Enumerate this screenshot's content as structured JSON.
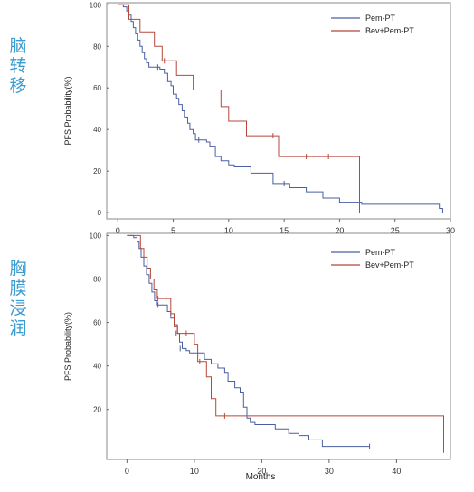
{
  "side_labels": {
    "top": [
      "脑",
      "转",
      "移"
    ],
    "bottom": [
      "胸",
      "膜",
      "浸",
      "润"
    ]
  },
  "colors": {
    "pem_pt": "#4a5fa0",
    "bev_pem_pt": "#b5483a",
    "side_label": "#3a9bd0"
  },
  "chart_data": [
    {
      "type": "line",
      "ylabel": "PFS Probability(%)",
      "xlabel": "",
      "xlim": [
        -1,
        30
      ],
      "ylim": [
        -3,
        101
      ],
      "xticks": [
        0,
        5,
        10,
        15,
        20,
        25,
        30
      ],
      "yticks": [
        0,
        20,
        40,
        60,
        80,
        100
      ],
      "legend": {
        "placement": "top-right"
      },
      "series": [
        {
          "name": "Pem-PT",
          "step": [
            [
              0,
              100
            ],
            [
              0.5,
              99
            ],
            [
              0.8,
              97
            ],
            [
              1.0,
              95
            ],
            [
              1.2,
              92
            ],
            [
              1.4,
              89
            ],
            [
              1.6,
              86
            ],
            [
              1.8,
              83
            ],
            [
              2.0,
              80
            ],
            [
              2.2,
              77
            ],
            [
              2.4,
              74
            ],
            [
              2.6,
              72
            ],
            [
              2.8,
              70
            ],
            [
              3.5,
              70
            ],
            [
              3.8,
              69
            ],
            [
              4.2,
              67
            ],
            [
              4.5,
              63
            ],
            [
              4.8,
              61
            ],
            [
              5.0,
              57
            ],
            [
              5.3,
              55
            ],
            [
              5.5,
              52
            ],
            [
              5.8,
              49
            ],
            [
              6.0,
              46
            ],
            [
              6.3,
              43
            ],
            [
              6.5,
              40
            ],
            [
              6.8,
              38
            ],
            [
              7.0,
              35
            ],
            [
              7.5,
              35
            ],
            [
              8.0,
              34
            ],
            [
              8.3,
              32
            ],
            [
              8.8,
              27
            ],
            [
              9.3,
              25
            ],
            [
              10.0,
              23
            ],
            [
              10.5,
              22
            ],
            [
              12.0,
              19
            ],
            [
              14.0,
              14
            ],
            [
              15.5,
              12
            ],
            [
              17.0,
              10
            ],
            [
              18.5,
              7
            ],
            [
              20.0,
              5
            ],
            [
              21.0,
              5
            ],
            [
              22.0,
              4
            ],
            [
              28.8,
              4
            ],
            [
              29.0,
              2
            ],
            [
              29.3,
              0
            ]
          ],
          "censored": [
            [
              3.6,
              70
            ],
            [
              7.3,
              35
            ],
            [
              15.0,
              14
            ]
          ]
        },
        {
          "name": "Bev+Pem-PT",
          "step": [
            [
              0,
              100
            ],
            [
              0.8,
              100
            ],
            [
              1.0,
              93
            ],
            [
              1.8,
              93
            ],
            [
              2.0,
              87
            ],
            [
              3.0,
              87
            ],
            [
              3.3,
              80
            ],
            [
              3.8,
              80
            ],
            [
              4.0,
              73
            ],
            [
              5.0,
              73
            ],
            [
              5.3,
              66
            ],
            [
              6.5,
              66
            ],
            [
              6.8,
              59
            ],
            [
              9.0,
              59
            ],
            [
              9.3,
              51
            ],
            [
              9.8,
              51
            ],
            [
              10.0,
              44
            ],
            [
              11.3,
              44
            ],
            [
              11.6,
              37
            ],
            [
              14.2,
              37
            ],
            [
              14.5,
              27
            ],
            [
              21.6,
              27
            ],
            [
              21.8,
              0
            ]
          ],
          "censored": [
            [
              4.2,
              73
            ],
            [
              14.0,
              37
            ],
            [
              17.0,
              27
            ],
            [
              19.0,
              27
            ]
          ]
        }
      ]
    },
    {
      "type": "line",
      "ylabel": "PFS Probability(%)",
      "xlabel": "Months",
      "xlim": [
        -3,
        48
      ],
      "ylim": [
        -3,
        101
      ],
      "xticks": [
        0,
        10,
        20,
        30,
        40
      ],
      "yticks": [
        20,
        40,
        60,
        80,
        100
      ],
      "legend": {
        "placement": "top-right"
      },
      "series": [
        {
          "name": "Pem-PT",
          "step": [
            [
              0,
              100
            ],
            [
              1,
              99
            ],
            [
              1.5,
              97
            ],
            [
              1.8,
              94
            ],
            [
              2.1,
              90
            ],
            [
              2.5,
              86
            ],
            [
              2.9,
              82
            ],
            [
              3.3,
              78
            ],
            [
              3.7,
              74
            ],
            [
              4.1,
              70
            ],
            [
              4.5,
              68
            ],
            [
              5.5,
              68
            ],
            [
              6.0,
              65
            ],
            [
              6.5,
              62
            ],
            [
              7.0,
              59
            ],
            [
              7.5,
              55
            ],
            [
              7.8,
              51
            ],
            [
              8.2,
              48
            ],
            [
              8.8,
              47
            ],
            [
              9.3,
              46
            ],
            [
              11.0,
              46
            ],
            [
              11.5,
              43
            ],
            [
              12.5,
              41
            ],
            [
              13.5,
              39
            ],
            [
              14.5,
              37
            ],
            [
              15.0,
              33
            ],
            [
              16.0,
              30
            ],
            [
              16.8,
              28
            ],
            [
              17.3,
              21
            ],
            [
              17.8,
              16
            ],
            [
              18.3,
              14
            ],
            [
              19.0,
              13
            ],
            [
              22.0,
              11
            ],
            [
              24.0,
              9
            ],
            [
              25.5,
              8
            ],
            [
              27.0,
              6
            ],
            [
              29.0,
              3
            ],
            [
              36.0,
              3
            ]
          ],
          "censored": [
            [
              4.6,
              68
            ],
            [
              7.9,
              48
            ],
            [
              36.0,
              3
            ]
          ]
        },
        {
          "name": "Bev+Pem-PT",
          "step": [
            [
              0,
              100
            ],
            [
              1.5,
              100
            ],
            [
              2.0,
              94
            ],
            [
              2.5,
              90
            ],
            [
              3.0,
              85
            ],
            [
              3.5,
              80
            ],
            [
              4.0,
              75
            ],
            [
              4.5,
              71
            ],
            [
              6.0,
              71
            ],
            [
              6.5,
              64
            ],
            [
              7.0,
              58
            ],
            [
              7.5,
              55
            ],
            [
              9.5,
              55
            ],
            [
              10.0,
              50
            ],
            [
              10.5,
              42
            ],
            [
              11.5,
              42
            ],
            [
              11.8,
              35
            ],
            [
              12.5,
              25
            ],
            [
              13.2,
              17
            ],
            [
              47.0,
              17
            ],
            [
              47.0,
              0
            ]
          ],
          "censored": [
            [
              4.6,
              71
            ],
            [
              5.8,
              71
            ],
            [
              7.3,
              55
            ],
            [
              8.8,
              55
            ],
            [
              10.8,
              42
            ],
            [
              14.5,
              17
            ]
          ]
        }
      ]
    }
  ]
}
